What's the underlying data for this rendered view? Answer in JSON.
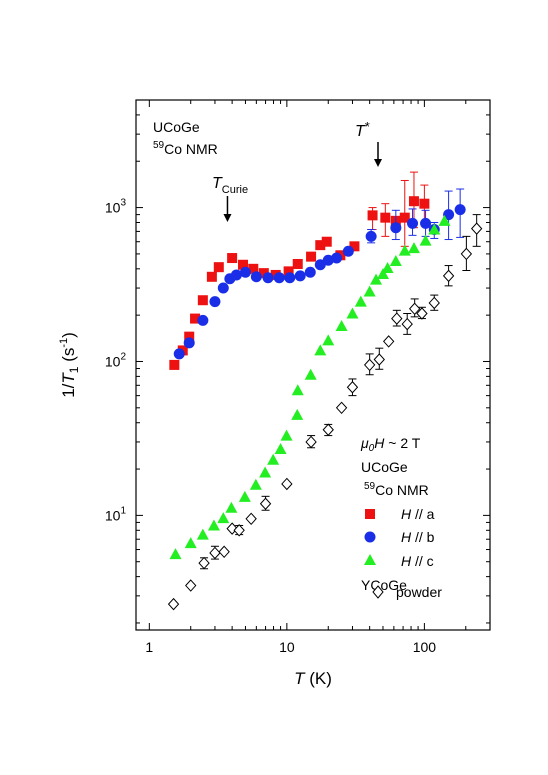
{
  "chart_data": {
    "type": "scatter",
    "xscale": "log",
    "yscale": "log",
    "xlim": [
      0.8,
      300
    ],
    "ylim": [
      1.8,
      5000
    ],
    "xlabel": {
      "italic": "T",
      "rest": " (K)"
    },
    "ylabel": {
      "pre": "1/",
      "italic": "T",
      "sub": "1",
      "rest": " (s",
      "sup": "-1",
      "close": ")"
    },
    "x_ticks": [
      {
        "value": 1,
        "label": "1"
      },
      {
        "value": 10,
        "label": "10"
      },
      {
        "value": 100,
        "label": "100"
      }
    ],
    "y_ticks": [
      {
        "value": 10,
        "base": "10",
        "exp": "1"
      },
      {
        "value": 100,
        "base": "10",
        "exp": "2"
      },
      {
        "value": 1000,
        "base": "10",
        "exp": "3"
      }
    ],
    "annotations": {
      "compound": "UCoGe",
      "nucleus_sup": "59",
      "nucleus_rest": "Co NMR",
      "tcurie_italic": "T",
      "tcurie_sub": "Curie",
      "tstar_italic": "T",
      "tstar_sup": "*",
      "tcurie_x": 3.7,
      "tstar_x": 46
    },
    "legend": {
      "placement": "bottom-right",
      "field_mu": "μ",
      "field_sub": "0",
      "field_H": "H",
      "field_rest": " ~ 2 T",
      "group1": "UCoGe",
      "group1_sub_sup": "59",
      "group1_sub_rest": "Co NMR",
      "group2": "YCoGe"
    },
    "series": [
      {
        "name": "H // a",
        "name_italic": "H",
        "name_rest": " // a",
        "color": "#ee1111",
        "marker": "square",
        "points": [
          [
            1.52,
            95
          ],
          [
            1.75,
            118
          ],
          [
            1.95,
            145
          ],
          [
            2.15,
            190
          ],
          [
            2.45,
            250
          ],
          [
            2.85,
            355
          ],
          [
            3.2,
            410
          ],
          [
            4.0,
            470
          ],
          [
            4.8,
            425
          ],
          [
            5.7,
            400
          ],
          [
            6.8,
            375
          ],
          [
            8.3,
            365
          ],
          [
            10.3,
            385
          ],
          [
            12,
            430
          ],
          [
            15,
            480
          ],
          [
            17.5,
            570
          ],
          [
            19.5,
            600
          ],
          [
            24.5,
            490
          ],
          [
            31,
            560
          ],
          [
            42,
            890
          ],
          [
            52,
            860
          ],
          [
            62,
            820
          ],
          [
            72,
            860
          ],
          [
            84,
            1100
          ],
          [
            100,
            1060
          ]
        ],
        "errors": [
          [
            42,
            720,
            1000
          ],
          [
            52,
            650,
            1060
          ],
          [
            72,
            560,
            1500
          ],
          [
            84,
            740,
            1700
          ],
          [
            100,
            800,
            1400
          ]
        ]
      },
      {
        "name": "H // b",
        "name_italic": "H",
        "name_rest": " // b",
        "color": "#1a2ee8",
        "marker": "circle",
        "points": [
          [
            1.65,
            112
          ],
          [
            1.95,
            132
          ],
          [
            2.45,
            185
          ],
          [
            3.0,
            245
          ],
          [
            3.45,
            300
          ],
          [
            3.85,
            345
          ],
          [
            4.3,
            365
          ],
          [
            5.0,
            380
          ],
          [
            6.0,
            355
          ],
          [
            7.3,
            350
          ],
          [
            8.8,
            350
          ],
          [
            10.5,
            350
          ],
          [
            12.5,
            360
          ],
          [
            14.8,
            380
          ],
          [
            17.5,
            425
          ],
          [
            20,
            455
          ],
          [
            23,
            470
          ],
          [
            28,
            520
          ],
          [
            41,
            650
          ],
          [
            62,
            740
          ],
          [
            82,
            790
          ],
          [
            102,
            790
          ],
          [
            118,
            720
          ],
          [
            150,
            900
          ],
          [
            182,
            970
          ]
        ],
        "errors": [
          [
            41,
            590,
            720
          ],
          [
            62,
            620,
            960
          ],
          [
            82,
            660,
            980
          ],
          [
            102,
            650,
            960
          ],
          [
            118,
            630,
            800
          ],
          [
            150,
            620,
            1280
          ],
          [
            182,
            640,
            1320
          ]
        ]
      },
      {
        "name": "H // c",
        "name_italic": "H",
        "name_rest": " // c",
        "color": "#22ee22",
        "marker": "triangle",
        "points": [
          [
            1.55,
            5.6
          ],
          [
            2.0,
            6.6
          ],
          [
            2.45,
            7.5
          ],
          [
            2.95,
            8.6
          ],
          [
            3.45,
            9.6
          ],
          [
            3.95,
            11.2
          ],
          [
            4.95,
            13.2
          ],
          [
            5.95,
            15.8
          ],
          [
            6.95,
            19
          ],
          [
            7.95,
            23
          ],
          [
            9.0,
            27
          ],
          [
            9.95,
            33
          ],
          [
            11.9,
            45
          ],
          [
            12,
            65
          ],
          [
            14.9,
            82
          ],
          [
            17.5,
            118
          ],
          [
            20,
            137
          ],
          [
            25,
            170
          ],
          [
            30,
            205
          ],
          [
            34.5,
            245
          ],
          [
            40,
            285
          ],
          [
            44.5,
            340
          ],
          [
            50,
            370
          ],
          [
            54,
            405
          ],
          [
            62,
            450
          ],
          [
            72,
            525
          ],
          [
            84,
            545
          ],
          [
            102,
            610
          ],
          [
            118,
            720
          ],
          [
            140,
            820
          ]
        ]
      },
      {
        "name": "powder",
        "group": "YCoGe",
        "color": "#000000",
        "marker": "diamond-open",
        "points": [
          [
            1.5,
            2.65
          ],
          [
            2.0,
            3.5
          ],
          [
            2.5,
            4.9
          ],
          [
            3.0,
            5.7
          ],
          [
            3.5,
            5.8
          ],
          [
            4.0,
            8.2
          ],
          [
            4.5,
            8.0
          ],
          [
            5.5,
            9.5
          ],
          [
            7.0,
            11.9
          ],
          [
            10,
            16
          ],
          [
            15,
            30
          ],
          [
            20,
            36
          ],
          [
            25,
            50
          ],
          [
            30,
            68
          ],
          [
            40,
            95
          ],
          [
            47,
            103
          ],
          [
            55,
            135
          ],
          [
            63,
            190
          ],
          [
            75,
            175
          ],
          [
            85,
            220
          ],
          [
            96,
            205
          ],
          [
            118,
            240
          ],
          [
            150,
            360
          ],
          [
            202,
            500
          ],
          [
            240,
            730
          ]
        ],
        "errors": [
          [
            2.5,
            4.5,
            5.3
          ],
          [
            3.0,
            5.2,
            6.3
          ],
          [
            4.5,
            7.5,
            8.6
          ],
          [
            7.0,
            10.8,
            13.3
          ],
          [
            15,
            27.5,
            33
          ],
          [
            20,
            33,
            39
          ],
          [
            30,
            60,
            77
          ],
          [
            40,
            82,
            112
          ],
          [
            47,
            89,
            122
          ],
          [
            63,
            170,
            215
          ],
          [
            75,
            150,
            205
          ],
          [
            85,
            195,
            255
          ],
          [
            96,
            190,
            225
          ],
          [
            118,
            215,
            270
          ],
          [
            150,
            310,
            420
          ],
          [
            202,
            390,
            650
          ],
          [
            240,
            560,
            900
          ]
        ]
      }
    ]
  }
}
